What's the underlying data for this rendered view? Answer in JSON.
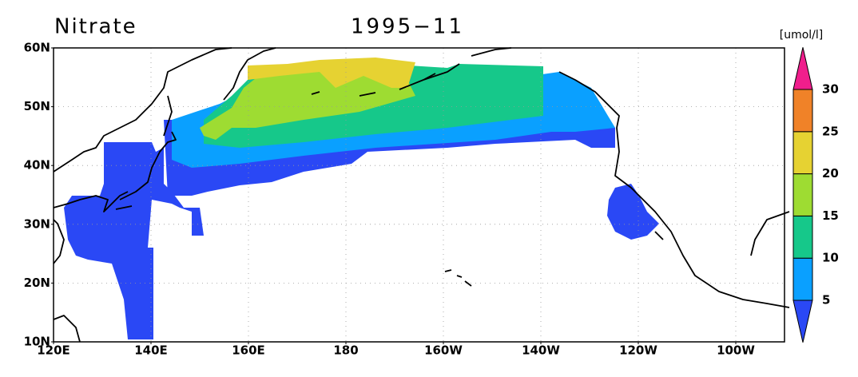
{
  "map": {
    "title": "Nitrate",
    "date": "1995−11",
    "units": "[umol/l]",
    "lat_ticks": [
      {
        "value": 10,
        "label": "10N"
      },
      {
        "value": 20,
        "label": "20N"
      },
      {
        "value": 30,
        "label": "30N"
      },
      {
        "value": 40,
        "label": "40N"
      },
      {
        "value": 50,
        "label": "50N"
      },
      {
        "value": 60,
        "label": "60N"
      }
    ],
    "lon_ticks": [
      {
        "value": 120,
        "label": "120E"
      },
      {
        "value": 140,
        "label": "140E"
      },
      {
        "value": 160,
        "label": "160E"
      },
      {
        "value": 180,
        "label": "180"
      },
      {
        "value": 200,
        "label": "160W"
      },
      {
        "value": 220,
        "label": "140W"
      },
      {
        "value": 240,
        "label": "120W"
      },
      {
        "value": 260,
        "label": "100W"
      }
    ],
    "lonlim": [
      120,
      270
    ],
    "latlim": [
      10,
      60
    ],
    "grid": true,
    "colorbar": {
      "levels": [
        5,
        10,
        15,
        20,
        25,
        30
      ],
      "colors": [
        "#2a48f5",
        "#0aa0ff",
        "#16c88a",
        "#9edc32",
        "#e6d232",
        "#f08228",
        "#f01e8c"
      ]
    }
  }
}
